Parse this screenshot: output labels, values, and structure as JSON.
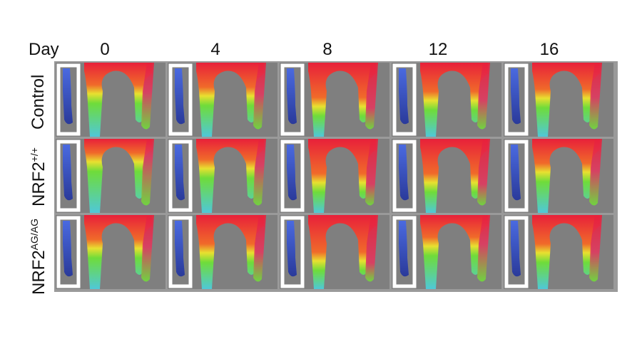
{
  "header": {
    "day_label": "Day"
  },
  "columns": [
    "0",
    "4",
    "8",
    "12",
    "16"
  ],
  "rows": [
    {
      "base": "Control",
      "sup": ""
    },
    {
      "base": "NRF2",
      "sup": "+/+"
    },
    {
      "base": "NRF2",
      "sup": "AG/AG"
    }
  ],
  "colors": {
    "background": "#7f7f7f",
    "high": "#e8203a",
    "mid": "#6fdc3a",
    "low": "#4fc8d8",
    "inset": "#2a3a9a"
  },
  "panel_intensity": [
    [
      0.55,
      0.6,
      0.85,
      0.7,
      0.65
    ],
    [
      0.35,
      0.5,
      0.85,
      0.85,
      0.6
    ],
    [
      0.6,
      0.7,
      0.9,
      0.55,
      0.7
    ]
  ]
}
